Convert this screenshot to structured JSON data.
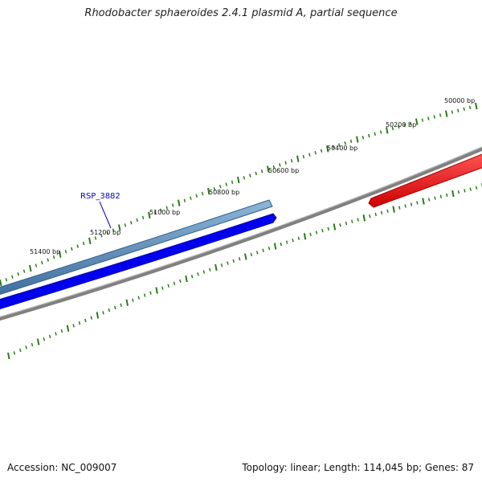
{
  "title": "Rhodobacter sphaeroides 2.4.1 plasmid A, partial sequence",
  "footer": {
    "accession": "Accession: NC_009007",
    "summary": "Topology: linear; Length: 114,045 bp; Genes: 87"
  },
  "ticks": [
    "50000 bp",
    "50200 bp",
    "50400 bp",
    "50600 bp",
    "50800 bp",
    "51000 bp",
    "51200 bp",
    "51400 bp"
  ],
  "gene_label": "RSP_3882",
  "colors": {
    "tick": "#2a7a1a",
    "backbone": "#808080",
    "gene_steel": "#4f86b8",
    "gene_blue": "#0000ee",
    "gene_red": "#ee0000",
    "gene_label": "#0000cc"
  }
}
